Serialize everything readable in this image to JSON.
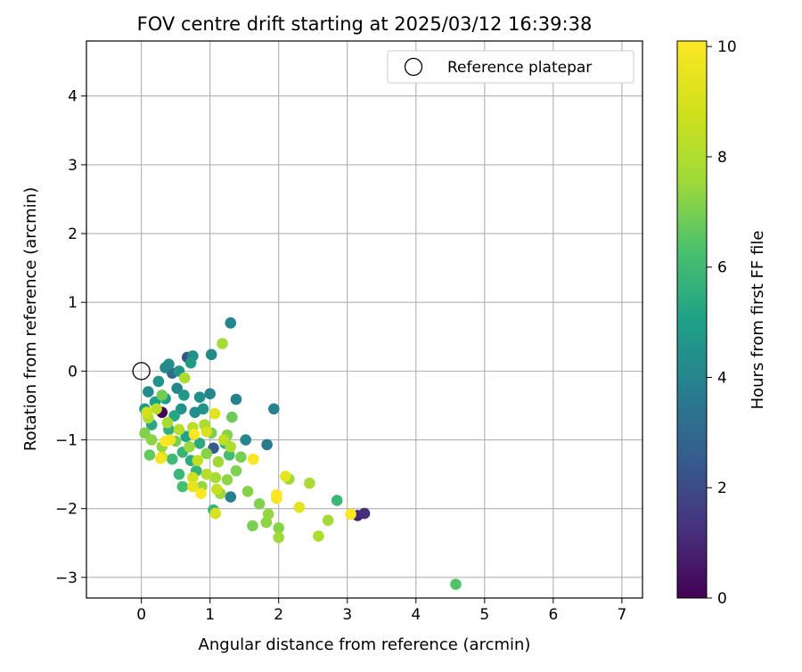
{
  "chart_data": {
    "type": "scatter",
    "title": "FOV centre drift starting at 2025/03/12 16:39:38",
    "xlabel": "Angular distance from reference (arcmin)",
    "ylabel": "Rotation from reference (arcmin)",
    "xlim": [
      -0.8,
      7.3
    ],
    "ylim": [
      -3.3,
      4.8
    ],
    "xticks": [
      "0",
      "1",
      "2",
      "3",
      "4",
      "5",
      "6",
      "7"
    ],
    "yticks": [
      "−3",
      "−2",
      "−1",
      "0",
      "1",
      "2",
      "3",
      "4"
    ],
    "grid": true,
    "legend": {
      "label": "Reference platepar",
      "placement": "top-right"
    },
    "reference_point": {
      "x": 0,
      "y": 0
    },
    "colorbar": {
      "label": "Hours from first FF file",
      "range": [
        0,
        10.1
      ],
      "ticks": [
        "0",
        "2",
        "4",
        "6",
        "8",
        "10"
      ],
      "colormap": "viridis"
    },
    "points": [
      {
        "x": 0.3,
        "y": -0.6,
        "h": 0.1
      },
      {
        "x": 3.15,
        "y": -2.1,
        "h": 0.9
      },
      {
        "x": 3.25,
        "y": -2.07,
        "h": 1.2
      },
      {
        "x": 0.67,
        "y": 0.2,
        "h": 2.3
      },
      {
        "x": 1.05,
        "y": -1.12,
        "h": 2.5
      },
      {
        "x": 0.45,
        "y": -0.03,
        "h": 3.0
      },
      {
        "x": 1.3,
        "y": 0.7,
        "h": 4.1
      },
      {
        "x": 1.02,
        "y": 0.24,
        "h": 4.2
      },
      {
        "x": 1.38,
        "y": -0.41,
        "h": 3.9
      },
      {
        "x": 1.93,
        "y": -0.55,
        "h": 3.9
      },
      {
        "x": 1.83,
        "y": -1.07,
        "h": 3.6
      },
      {
        "x": 1.52,
        "y": -1.0,
        "h": 4.0
      },
      {
        "x": 1.3,
        "y": -1.83,
        "h": 3.8
      },
      {
        "x": 0.75,
        "y": 0.22,
        "h": 4.4
      },
      {
        "x": 0.35,
        "y": 0.05,
        "h": 4.0
      },
      {
        "x": 0.4,
        "y": 0.1,
        "h": 4.3
      },
      {
        "x": 0.55,
        "y": 0.0,
        "h": 4.6
      },
      {
        "x": 0.72,
        "y": 0.12,
        "h": 4.8
      },
      {
        "x": 0.1,
        "y": -0.3,
        "h": 4.2
      },
      {
        "x": 0.25,
        "y": -0.15,
        "h": 4.5
      },
      {
        "x": 0.52,
        "y": -0.25,
        "h": 4.1
      },
      {
        "x": 0.62,
        "y": -0.35,
        "h": 4.7
      },
      {
        "x": 0.85,
        "y": -0.38,
        "h": 4.4
      },
      {
        "x": 1.0,
        "y": -0.33,
        "h": 4.0
      },
      {
        "x": 0.05,
        "y": -0.55,
        "h": 4.8
      },
      {
        "x": 0.2,
        "y": -0.45,
        "h": 5.0
      },
      {
        "x": 0.35,
        "y": -0.4,
        "h": 4.9
      },
      {
        "x": 0.58,
        "y": -0.55,
        "h": 4.5
      },
      {
        "x": 0.9,
        "y": -0.55,
        "h": 4.6
      },
      {
        "x": 0.48,
        "y": -0.65,
        "h": 5.2
      },
      {
        "x": 0.78,
        "y": -0.6,
        "h": 4.3
      },
      {
        "x": 0.15,
        "y": -0.78,
        "h": 5.3
      },
      {
        "x": 0.4,
        "y": -0.85,
        "h": 5.6
      },
      {
        "x": 0.65,
        "y": -0.95,
        "h": 5.1
      },
      {
        "x": 0.85,
        "y": -1.05,
        "h": 5.4
      },
      {
        "x": 0.6,
        "y": -1.18,
        "h": 5.8
      },
      {
        "x": 0.45,
        "y": -1.28,
        "h": 6.0
      },
      {
        "x": 0.72,
        "y": -1.3,
        "h": 5.5
      },
      {
        "x": 0.55,
        "y": -1.5,
        "h": 5.9
      },
      {
        "x": 0.8,
        "y": -1.45,
        "h": 5.7
      },
      {
        "x": 0.6,
        "y": -1.68,
        "h": 6.2
      },
      {
        "x": 1.22,
        "y": -1.05,
        "h": 5.6
      },
      {
        "x": 1.28,
        "y": -1.22,
        "h": 6.1
      },
      {
        "x": 1.05,
        "y": -2.02,
        "h": 5.8
      },
      {
        "x": 2.85,
        "y": -1.88,
        "h": 5.9
      },
      {
        "x": 4.58,
        "y": -3.1,
        "h": 6.4
      },
      {
        "x": 1.32,
        "y": -0.67,
        "h": 6.8
      },
      {
        "x": 1.02,
        "y": -0.9,
        "h": 7.0
      },
      {
        "x": 1.25,
        "y": -0.93,
        "h": 7.2
      },
      {
        "x": 0.3,
        "y": -0.35,
        "h": 6.9
      },
      {
        "x": 0.05,
        "y": -0.9,
        "h": 7.1
      },
      {
        "x": 0.15,
        "y": -1.0,
        "h": 7.3
      },
      {
        "x": 0.12,
        "y": -1.22,
        "h": 6.7
      },
      {
        "x": 0.3,
        "y": -1.1,
        "h": 7.4
      },
      {
        "x": 0.5,
        "y": -1.02,
        "h": 7.0
      },
      {
        "x": 0.7,
        "y": -1.1,
        "h": 7.5
      },
      {
        "x": 0.95,
        "y": -1.2,
        "h": 7.2
      },
      {
        "x": 1.12,
        "y": -1.32,
        "h": 7.6
      },
      {
        "x": 1.38,
        "y": -1.45,
        "h": 7.1
      },
      {
        "x": 1.25,
        "y": -1.58,
        "h": 7.3
      },
      {
        "x": 1.08,
        "y": -1.55,
        "h": 7.7
      },
      {
        "x": 0.88,
        "y": -1.68,
        "h": 7.4
      },
      {
        "x": 1.45,
        "y": -1.25,
        "h": 7.0
      },
      {
        "x": 1.55,
        "y": -1.75,
        "h": 7.2
      },
      {
        "x": 1.15,
        "y": -1.78,
        "h": 7.5
      },
      {
        "x": 1.72,
        "y": -1.93,
        "h": 7.1
      },
      {
        "x": 1.82,
        "y": -2.2,
        "h": 7.3
      },
      {
        "x": 1.62,
        "y": -2.25,
        "h": 7.0
      },
      {
        "x": 1.85,
        "y": -2.08,
        "h": 7.4
      },
      {
        "x": 2.0,
        "y": -2.28,
        "h": 7.2
      },
      {
        "x": 2.0,
        "y": -2.42,
        "h": 7.6
      },
      {
        "x": 2.15,
        "y": -1.57,
        "h": 7.5
      },
      {
        "x": 2.45,
        "y": -1.63,
        "h": 7.8
      },
      {
        "x": 2.72,
        "y": -2.17,
        "h": 7.7
      },
      {
        "x": 2.58,
        "y": -2.4,
        "h": 7.9
      },
      {
        "x": 1.18,
        "y": 0.4,
        "h": 7.7
      },
      {
        "x": 0.63,
        "y": -0.1,
        "h": 7.9
      },
      {
        "x": 0.1,
        "y": -0.68,
        "h": 8.0
      },
      {
        "x": 0.22,
        "y": -0.55,
        "h": 8.3
      },
      {
        "x": 0.38,
        "y": -0.75,
        "h": 7.8
      },
      {
        "x": 0.55,
        "y": -0.85,
        "h": 8.1
      },
      {
        "x": 0.75,
        "y": -0.82,
        "h": 8.2
      },
      {
        "x": 0.92,
        "y": -0.78,
        "h": 7.9
      },
      {
        "x": 1.2,
        "y": -1.0,
        "h": 8.4
      },
      {
        "x": 1.3,
        "y": -1.1,
        "h": 8.0
      },
      {
        "x": 0.82,
        "y": -1.3,
        "h": 8.5
      },
      {
        "x": 0.95,
        "y": -1.5,
        "h": 8.2
      },
      {
        "x": 1.1,
        "y": -1.72,
        "h": 8.6
      },
      {
        "x": 0.75,
        "y": -1.55,
        "h": 8.8
      },
      {
        "x": 0.3,
        "y": -1.25,
        "h": 8.7
      },
      {
        "x": 0.08,
        "y": -0.6,
        "h": 8.9
      },
      {
        "x": 1.07,
        "y": -0.62,
        "h": 9.3
      },
      {
        "x": 0.95,
        "y": -0.88,
        "h": 9.0
      },
      {
        "x": 1.08,
        "y": -2.07,
        "h": 9.1
      },
      {
        "x": 0.75,
        "y": -1.68,
        "h": 9.4
      },
      {
        "x": 2.1,
        "y": -1.53,
        "h": 9.4
      },
      {
        "x": 2.3,
        "y": -1.98,
        "h": 9.3
      },
      {
        "x": 0.42,
        "y": -1.0,
        "h": 9.7
      },
      {
        "x": 0.35,
        "y": -1.02,
        "h": 10.0
      },
      {
        "x": 0.28,
        "y": -1.27,
        "h": 9.8
      },
      {
        "x": 0.77,
        "y": -0.92,
        "h": 10.0
      },
      {
        "x": 0.87,
        "y": -1.78,
        "h": 10.1
      },
      {
        "x": 1.63,
        "y": -1.28,
        "h": 10.0
      },
      {
        "x": 1.97,
        "y": -1.85,
        "h": 9.9
      },
      {
        "x": 1.97,
        "y": -1.8,
        "h": 10.0
      },
      {
        "x": 3.05,
        "y": -2.08,
        "h": 10.1
      }
    ]
  }
}
